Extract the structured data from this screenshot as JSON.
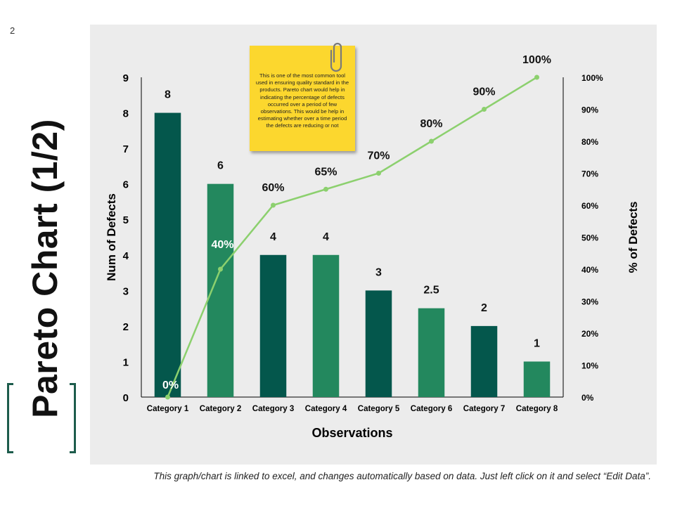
{
  "slide": {
    "number": "2",
    "title": "Pareto Chart (1/2)"
  },
  "note": {
    "text": "This is one of the most common tool used in ensuring quality standard in the products. Pareto chart would help in indicating the percentage of defects occurred over a period of few observations. This would be help in estimating whether over a time period the defects are reducing or not"
  },
  "footer": {
    "text": "This graph/chart is linked to excel, and changes automatically based on data. Just left click on it and select “Edit Data”."
  },
  "colors": {
    "bar_dark": "#04574c",
    "bar_light": "#23885e",
    "line": "#8cd06e",
    "panel": "#ececec",
    "title_bracket": "#1d5c4c",
    "note": "#fcd72e"
  },
  "chart_data": {
    "type": "bar",
    "categories": [
      "Category 1",
      "Category 2",
      "Category 3",
      "Category 4",
      "Category 5",
      "Category 6",
      "Category 7",
      "Category 8"
    ],
    "series": [
      {
        "name": "Num of Defects",
        "type": "bar",
        "axis": "left",
        "values": [
          8,
          6,
          4,
          4,
          3,
          2.5,
          2,
          1
        ],
        "labels": [
          "8",
          "6",
          "4",
          "4",
          "3",
          "2.5",
          "2",
          "1"
        ]
      },
      {
        "name": "% of Defects",
        "type": "line",
        "axis": "right",
        "values": [
          0,
          40,
          60,
          65,
          70,
          80,
          90,
          100
        ],
        "labels": [
          "0%",
          "40%",
          "60%",
          "65%",
          "70%",
          "80%",
          "90%",
          "100%"
        ]
      }
    ],
    "xlabel": "Observations",
    "ylabel": "Num of Defects",
    "y2label": "% of Defects",
    "ylim": [
      0,
      9
    ],
    "yticks": [
      "0",
      "1",
      "2",
      "3",
      "4",
      "5",
      "6",
      "7",
      "8",
      "9"
    ],
    "y2lim": [
      0,
      100
    ],
    "y2ticks": [
      "0%",
      "10%",
      "20%",
      "30%",
      "40%",
      "50%",
      "60%",
      "70%",
      "80%",
      "90%",
      "100%"
    ],
    "grid": false,
    "legend": "none"
  }
}
